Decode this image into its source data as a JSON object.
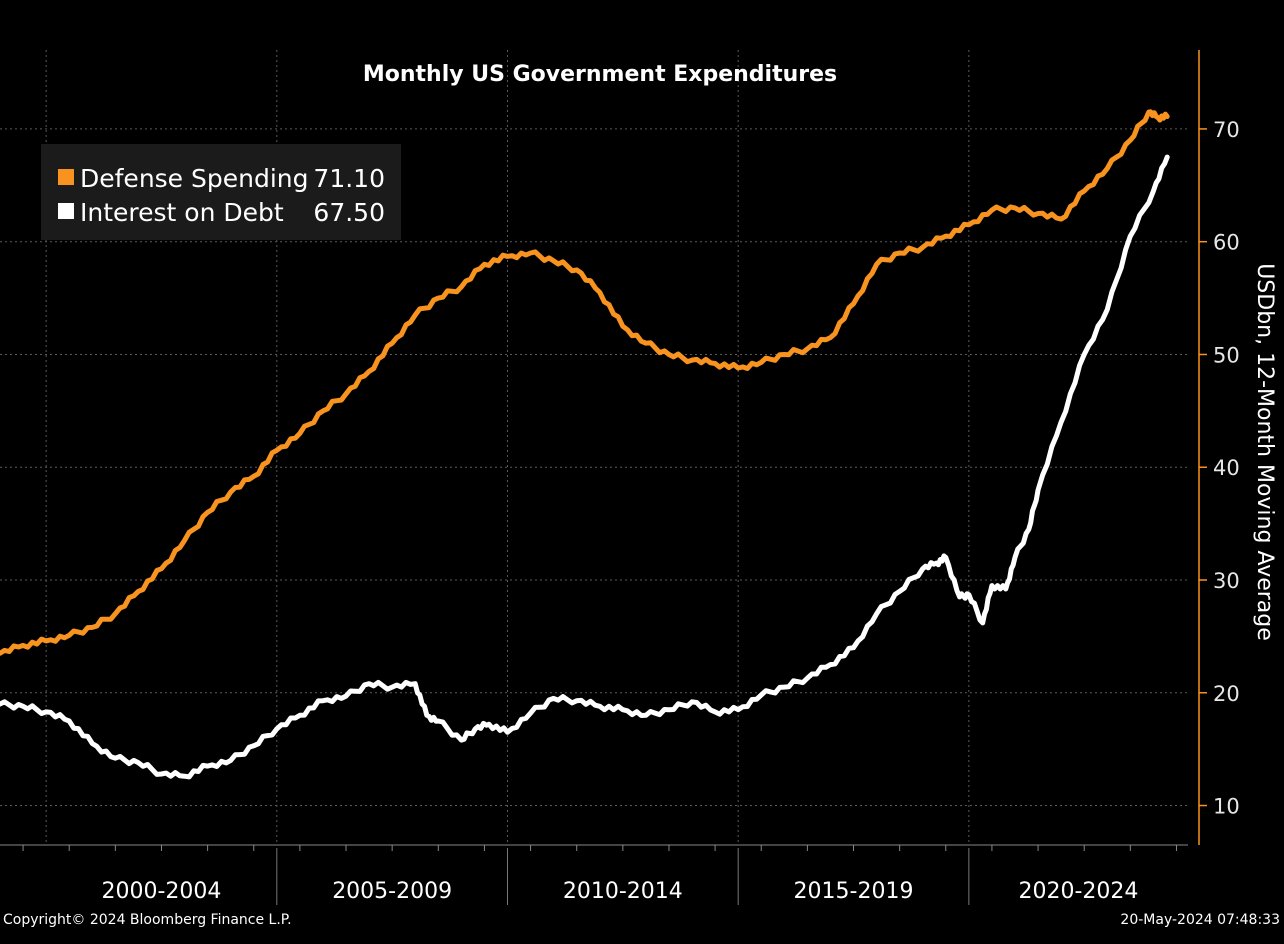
{
  "chart_data": {
    "type": "line",
    "title": "Monthly US Government Expenditures",
    "ylabel": "USDbn, 12-Month Moving Average",
    "xlabel": "",
    "ylim": [
      6.5,
      77
    ],
    "yticks": [
      10,
      20,
      30,
      40,
      50,
      60,
      70
    ],
    "xlim": [
      1999.0,
      2024.75
    ],
    "grid": true,
    "legend_position": "top-left",
    "categories": [
      "2000-2004",
      "2005-2009",
      "2010-2014",
      "2015-2019",
      "2020-2024"
    ],
    "series": [
      {
        "name": "Defense Spending",
        "last_value": "71.10",
        "color": "#f7931e",
        "x": [
          1999.0,
          1999.5,
          2000.0,
          2000.5,
          2001.0,
          2001.5,
          2002.0,
          2002.5,
          2003.0,
          2003.5,
          2004.0,
          2004.5,
          2005.0,
          2005.5,
          2006.0,
          2006.5,
          2007.0,
          2007.5,
          2008.0,
          2008.5,
          2009.0,
          2009.5,
          2010.0,
          2010.5,
          2011.0,
          2011.5,
          2012.0,
          2012.5,
          2013.0,
          2013.5,
          2014.0,
          2014.5,
          2015.0,
          2015.5,
          2016.0,
          2016.5,
          2017.0,
          2017.5,
          2018.0,
          2018.5,
          2019.0,
          2019.5,
          2020.0,
          2020.5,
          2021.0,
          2021.5,
          2022.0,
          2022.5,
          2023.0,
          2023.5,
          2023.9,
          2024.1,
          2024.3
        ],
        "y": [
          23.5,
          24.2,
          24.6,
          25.1,
          25.8,
          27.0,
          29.0,
          31.0,
          33.5,
          36.0,
          37.8,
          39.2,
          41.5,
          43.0,
          45.0,
          46.5,
          48.5,
          51.0,
          53.5,
          55.0,
          56.0,
          58.0,
          58.7,
          59.0,
          58.3,
          57.5,
          55.5,
          52.5,
          51.0,
          50.0,
          49.5,
          49.2,
          48.8,
          49.3,
          50.0,
          50.5,
          51.5,
          54.5,
          58.0,
          59.0,
          59.5,
          60.5,
          61.5,
          62.8,
          63.0,
          62.5,
          62.0,
          64.5,
          66.5,
          69.0,
          71.5,
          71.0,
          71.1
        ]
      },
      {
        "name": "Interest on Debt",
        "last_value": "67.50",
        "color": "#ffffff",
        "x": [
          1999.0,
          1999.5,
          2000.0,
          2000.5,
          2001.0,
          2001.5,
          2002.0,
          2002.5,
          2003.0,
          2003.5,
          2004.0,
          2004.5,
          2005.0,
          2005.5,
          2006.0,
          2006.5,
          2007.0,
          2007.5,
          2008.0,
          2008.25,
          2008.5,
          2009.0,
          2009.3,
          2009.6,
          2010.0,
          2010.5,
          2011.0,
          2011.5,
          2012.0,
          2012.5,
          2013.0,
          2013.5,
          2014.0,
          2014.5,
          2015.0,
          2015.5,
          2016.0,
          2016.5,
          2017.0,
          2017.5,
          2018.0,
          2018.5,
          2019.0,
          2019.3,
          2019.5,
          2019.8,
          2020.0,
          2020.3,
          2020.5,
          2020.8,
          2021.0,
          2021.3,
          2021.5,
          2022.0,
          2022.5,
          2023.0,
          2023.5,
          2024.0,
          2024.3
        ],
        "y": [
          19.0,
          18.8,
          18.3,
          17.5,
          15.5,
          14.2,
          13.8,
          12.8,
          12.6,
          13.5,
          14.0,
          15.3,
          16.8,
          18.0,
          19.3,
          19.7,
          20.8,
          20.5,
          20.8,
          18.0,
          17.5,
          15.8,
          16.8,
          17.2,
          16.5,
          18.2,
          19.5,
          19.3,
          18.8,
          18.5,
          18.0,
          18.5,
          19.2,
          18.3,
          18.5,
          19.8,
          20.5,
          21.3,
          22.5,
          24.0,
          27.0,
          29.0,
          31.0,
          31.5,
          32.0,
          28.5,
          28.7,
          26.2,
          29.5,
          29.2,
          32.0,
          34.5,
          38.0,
          44.0,
          50.0,
          54.0,
          60.5,
          64.5,
          67.5
        ]
      }
    ]
  },
  "footer": {
    "copyright": "Copyright© 2024 Bloomberg Finance L.P.",
    "timestamp": "20-May-2024 07:48:33"
  }
}
